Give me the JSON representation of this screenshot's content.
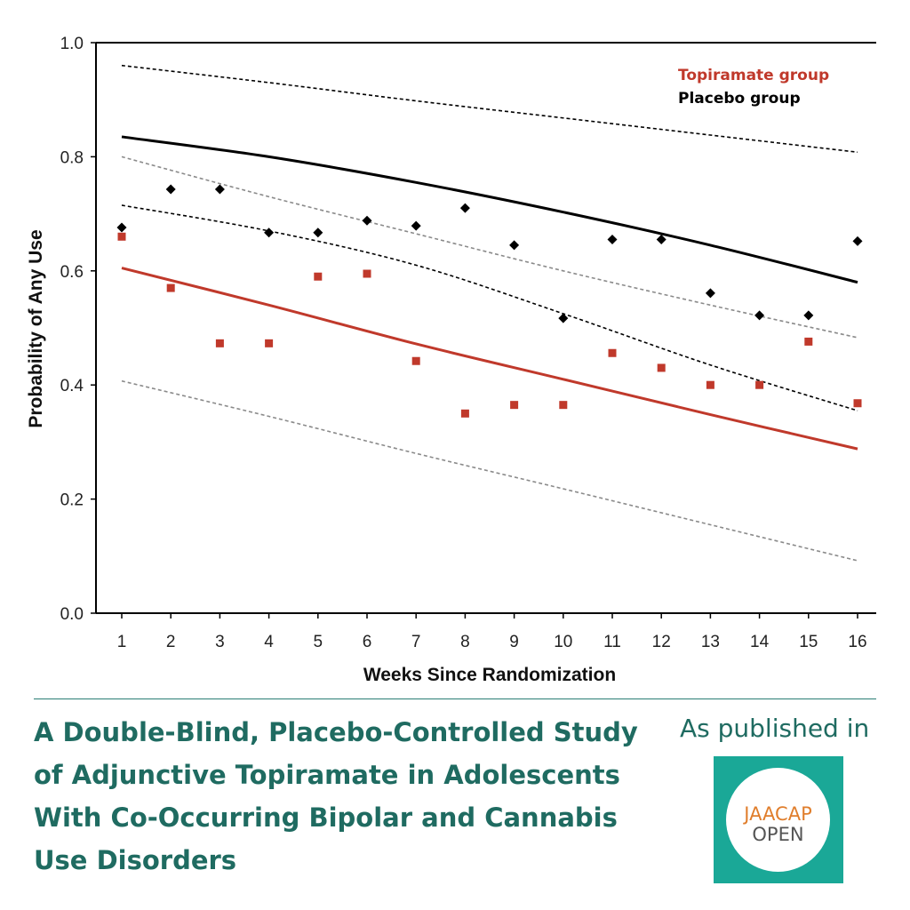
{
  "chart_data": {
    "type": "scatter",
    "xlabel": "Weeks Since Randomization",
    "ylabel": "Probability of Any Use",
    "x_ticks": [
      1,
      2,
      3,
      4,
      5,
      6,
      7,
      8,
      9,
      10,
      11,
      12,
      13,
      14,
      15,
      16
    ],
    "y_ticks": [
      "0.0",
      "0.2",
      "0.4",
      "0.6",
      "0.8",
      "1.0"
    ],
    "xlim": [
      0.5,
      16.4
    ],
    "ylim": [
      0,
      1
    ],
    "legend_position": "top-right",
    "legend": [
      "Topiramate group",
      "Placebo group"
    ],
    "colors": {
      "topiramate": "#c0392b",
      "placebo": "#000000",
      "dashed_gray": "#8a8a8a"
    },
    "series": [
      {
        "name": "Placebo group",
        "kind": "observed",
        "marker": "diamond",
        "color": "#000000",
        "x": [
          1,
          2,
          3,
          4,
          5,
          6,
          7,
          8,
          9,
          10,
          11,
          12,
          13,
          14,
          15,
          16
        ],
        "y": [
          0.676,
          0.743,
          0.743,
          0.667,
          0.667,
          0.688,
          0.679,
          0.71,
          0.645,
          0.517,
          0.655,
          0.655,
          0.561,
          0.522,
          0.522,
          0.652
        ]
      },
      {
        "name": "Topiramate group",
        "kind": "observed",
        "marker": "square",
        "color": "#c0392b",
        "x": [
          1,
          2,
          3,
          4,
          5,
          6,
          7,
          8,
          9,
          10,
          11,
          12,
          13,
          14,
          15,
          16
        ],
        "y": [
          0.66,
          0.57,
          0.473,
          0.473,
          0.59,
          0.595,
          0.442,
          0.35,
          0.365,
          0.365,
          0.456,
          0.43,
          0.4,
          0.4,
          0.476,
          0.368
        ]
      },
      {
        "kind": "fit",
        "style": "solid",
        "color": "#000000",
        "x": [
          1,
          4,
          7,
          10,
          13,
          16
        ],
        "y": [
          0.835,
          0.8,
          0.755,
          0.703,
          0.645,
          0.58
        ]
      },
      {
        "kind": "ci",
        "style": "dashed",
        "color": "#000000",
        "x": [
          1,
          4,
          7,
          10,
          13,
          16
        ],
        "y": [
          0.96,
          0.93,
          0.898,
          0.868,
          0.838,
          0.808
        ]
      },
      {
        "kind": "ci",
        "style": "dashed",
        "color": "#000000",
        "x": [
          1,
          4,
          7,
          10,
          13,
          16
        ],
        "y": [
          0.715,
          0.67,
          0.61,
          0.525,
          0.435,
          0.355
        ]
      },
      {
        "kind": "fit",
        "style": "solid",
        "color": "#c0392b",
        "x": [
          1,
          4,
          7,
          10,
          13,
          16
        ],
        "y": [
          0.605,
          0.54,
          0.472,
          0.41,
          0.348,
          0.288
        ]
      },
      {
        "kind": "ci",
        "style": "dashed",
        "color": "#8a8a8a",
        "x": [
          1,
          4,
          7,
          10,
          13,
          16
        ],
        "y": [
          0.8,
          0.73,
          0.665,
          0.6,
          0.54,
          0.483
        ]
      },
      {
        "kind": "ci",
        "style": "dashed",
        "color": "#8a8a8a",
        "x": [
          1,
          4,
          7,
          10,
          13,
          16
        ],
        "y": [
          0.407,
          0.345,
          0.28,
          0.218,
          0.155,
          0.092
        ]
      }
    ]
  },
  "footer": {
    "title": "A Double-Blind, Placebo-Controlled Study of Adjunctive Topiramate in Adolescents With Co-Occurring Bipolar and Cannabis Use Disorders",
    "published_label": "As published in",
    "logo_line1": "JAACAP",
    "logo_line2": "OPEN"
  }
}
